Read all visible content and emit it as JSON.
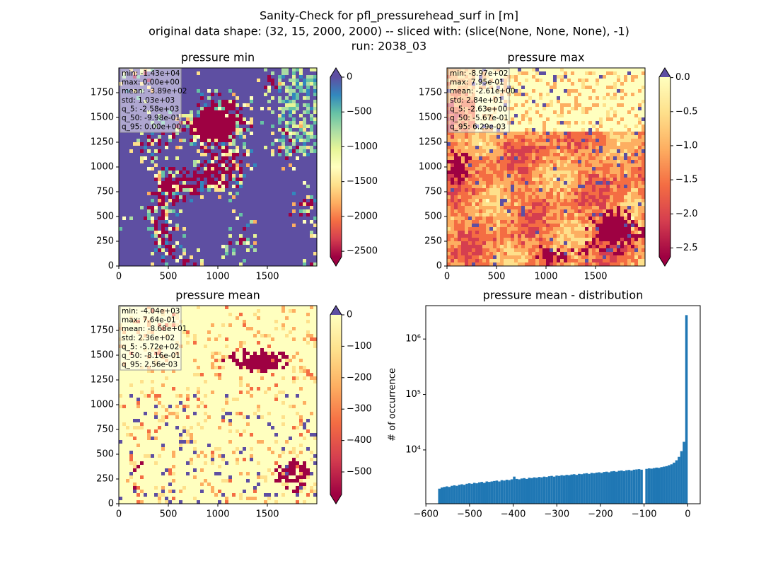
{
  "suptitle": [
    "Sanity-Check for pfl_pressurehead_surf in [m]",
    "original data shape: (32, 15, 2000, 2000) -- sliced with: (slice(None, None, None), -1)",
    "run: 2038_03"
  ],
  "chart_data": [
    {
      "type": "heatmap",
      "title": "pressure min",
      "xlim": [
        0,
        2000
      ],
      "ylim": [
        0,
        2000
      ],
      "xticks": [
        0,
        500,
        1000,
        1500
      ],
      "yticks": [
        0,
        250,
        500,
        750,
        1000,
        1250,
        1500,
        1750
      ],
      "annotations": [
        "min: -1.43e+04",
        "max: 0.00e+00",
        "mean: -3.89e+02",
        "std: 1.03e+03",
        "q_5: -2.58e+03",
        "q_50: -9.98e-01",
        "q_95: 0.00e+00"
      ],
      "clim": [
        -2580,
        0
      ],
      "cticks": [
        {
          "value": -2500,
          "label": "−2500"
        },
        {
          "value": -2000,
          "label": "−2000"
        },
        {
          "value": -1500,
          "label": "−1500"
        },
        {
          "value": -1000,
          "label": "−1000"
        },
        {
          "value": -500,
          "label": "−500"
        },
        0
      ],
      "colormap": [
        "#9e0142",
        "#d53e4f",
        "#f46d43",
        "#fdae61",
        "#fee08b",
        "#ffffbf",
        "#e6f598",
        "#abdda4",
        "#66c2a5",
        "#3288bd",
        "#5e4fa2"
      ],
      "under_color": "#9e0142",
      "over_color": "#5e4fa2"
    },
    {
      "type": "heatmap",
      "title": "pressure max",
      "xlim": [
        0,
        2000
      ],
      "ylim": [
        0,
        2000
      ],
      "xticks": [
        0,
        500,
        1000,
        1500
      ],
      "yticks": [
        0,
        250,
        500,
        750,
        1000,
        1250,
        1500,
        1750
      ],
      "annotations": [
        "min: -8.97e+02",
        "max: 7.95e-01",
        "mean: -2.61e+00",
        "std: 2.84e+01",
        "q_5: -2.63e+00",
        "q_50: -5.67e-01",
        "q_95: 6.29e-03"
      ],
      "clim": [
        -2.63,
        0.00629
      ],
      "cticks": [
        {
          "value": -2.5,
          "label": "−2.5"
        },
        {
          "value": -2,
          "label": "−2.0"
        },
        {
          "value": -1.5,
          "label": "−1.5"
        },
        {
          "value": -1,
          "label": "−1.0"
        },
        {
          "value": -0.5,
          "label": "−0.5"
        },
        {
          "value": 0,
          "label": "0.0"
        }
      ],
      "colormap": [
        "#9e0142",
        "#d53e4f",
        "#f46d43",
        "#fdae61",
        "#fee08b",
        "#ffffbf"
      ],
      "under_color": "#9e0142",
      "over_color": "#5e4fa2"
    },
    {
      "type": "heatmap",
      "title": "pressure mean",
      "xlim": [
        0,
        2000
      ],
      "ylim": [
        0,
        2000
      ],
      "xticks": [
        0,
        500,
        1000,
        1500
      ],
      "yticks": [
        0,
        250,
        500,
        750,
        1000,
        1250,
        1500,
        1750
      ],
      "annotations": [
        "min: -4.04e+03",
        "max: 7.64e-01",
        "mean: -8.68e+01",
        "std: 2.36e+02",
        "q_5: -5.72e+02",
        "q_50: -8.16e-01",
        "q_95: 2.56e-03"
      ],
      "clim": [
        -572,
        0.00256
      ],
      "cticks": [
        {
          "value": -500,
          "label": "−500"
        },
        {
          "value": -400,
          "label": "−400"
        },
        {
          "value": -300,
          "label": "−300"
        },
        {
          "value": -200,
          "label": "−200"
        },
        {
          "value": -100,
          "label": "−100"
        },
        0
      ],
      "colormap": [
        "#9e0142",
        "#d53e4f",
        "#f46d43",
        "#fdae61",
        "#fee08b",
        "#ffffbf"
      ],
      "under_color": "#9e0142",
      "over_color": "#5e4fa2"
    },
    {
      "type": "histogram",
      "title": "pressure mean - distribution",
      "ylabel": "# of occurrence",
      "color": "#1f77b4",
      "log_y": true,
      "xlim": [
        -600.3,
        28.6
      ],
      "xticks": [
        {
          "value": -600,
          "label": "−600"
        },
        {
          "value": -500,
          "label": "−500"
        },
        {
          "value": -400,
          "label": "−400"
        },
        {
          "value": -300,
          "label": "−300"
        },
        {
          "value": -200,
          "label": "−200"
        },
        {
          "value": -100,
          "label": "−100"
        },
        0
      ],
      "ylim": [
        1070,
        4000000
      ],
      "yticks": [
        {
          "value": 10000,
          "label": "10⁴"
        },
        {
          "value": 100000,
          "label": "10⁵"
        },
        {
          "value": 1000000,
          "label": "10⁶"
        }
      ],
      "bins": [
        -572,
        -566.28,
        -560.56,
        -554.84,
        -549.12,
        -543.4,
        -537.68,
        -531.96,
        -526.24,
        -520.52,
        -514.8,
        -509.08,
        -503.36,
        -497.64,
        -491.92,
        -486.2,
        -480.48,
        -474.76,
        -469.04,
        -463.32,
        -457.6,
        -451.88,
        -446.16,
        -440.44,
        -434.72,
        -429,
        -423.28,
        -417.56,
        -411.84,
        -406.12,
        -400.4,
        -394.68,
        -388.96,
        -383.24,
        -377.52,
        -371.8,
        -366.08,
        -360.36,
        -354.64,
        -348.92,
        -343.2,
        -337.48,
        -331.76,
        -326.04,
        -320.32,
        -314.6,
        -308.88,
        -303.16,
        -297.44,
        -291.72,
        -286,
        -280.28,
        -274.56,
        -268.84,
        -263.12,
        -257.4,
        -251.68,
        -245.96,
        -240.24,
        -234.52,
        -228.8,
        -223.08,
        -217.36,
        -211.64,
        -205.92,
        -200.2,
        -194.48,
        -188.76,
        -183.04,
        -177.32,
        -171.6,
        -165.88,
        -160.16,
        -154.44,
        -148.72,
        -143,
        -137.28,
        -131.56,
        -125.84,
        -120.12,
        -114.4,
        -108.68,
        -102.96,
        -97.24,
        -91.52,
        -85.8,
        -80.08,
        -74.36,
        -68.64,
        -62.92,
        -57.2,
        -51.48,
        -45.76,
        -40.04,
        -34.32,
        -28.6,
        -22.88,
        -17.16,
        -11.44,
        -5.72,
        0
      ],
      "values": [
        2000,
        2100,
        2150,
        2200,
        2150,
        2250,
        2300,
        2250,
        2350,
        2400,
        2350,
        2450,
        2500,
        2450,
        2550,
        2500,
        2600,
        2650,
        2550,
        2700,
        2650,
        2700,
        2750,
        2800,
        2700,
        2850,
        2800,
        2900,
        2850,
        2950,
        3300,
        3000,
        2950,
        3050,
        3100,
        3000,
        3150,
        3100,
        3200,
        3150,
        3250,
        3200,
        3300,
        3250,
        3350,
        3400,
        3300,
        3450,
        3400,
        3500,
        3450,
        3550,
        3500,
        3600,
        3650,
        3550,
        3700,
        3650,
        3750,
        3800,
        3700,
        3850,
        3800,
        3900,
        3950,
        3850,
        4000,
        4050,
        3950,
        4100,
        4150,
        4050,
        4200,
        4250,
        4150,
        4300,
        4350,
        4250,
        4400,
        4450,
        4500,
        4400,
        900,
        4550,
        4650,
        4600,
        4700,
        4800,
        4750,
        4900,
        5000,
        5100,
        5300,
        5500,
        5900,
        6500,
        7500,
        9500,
        14000,
        2700000
      ]
    }
  ]
}
